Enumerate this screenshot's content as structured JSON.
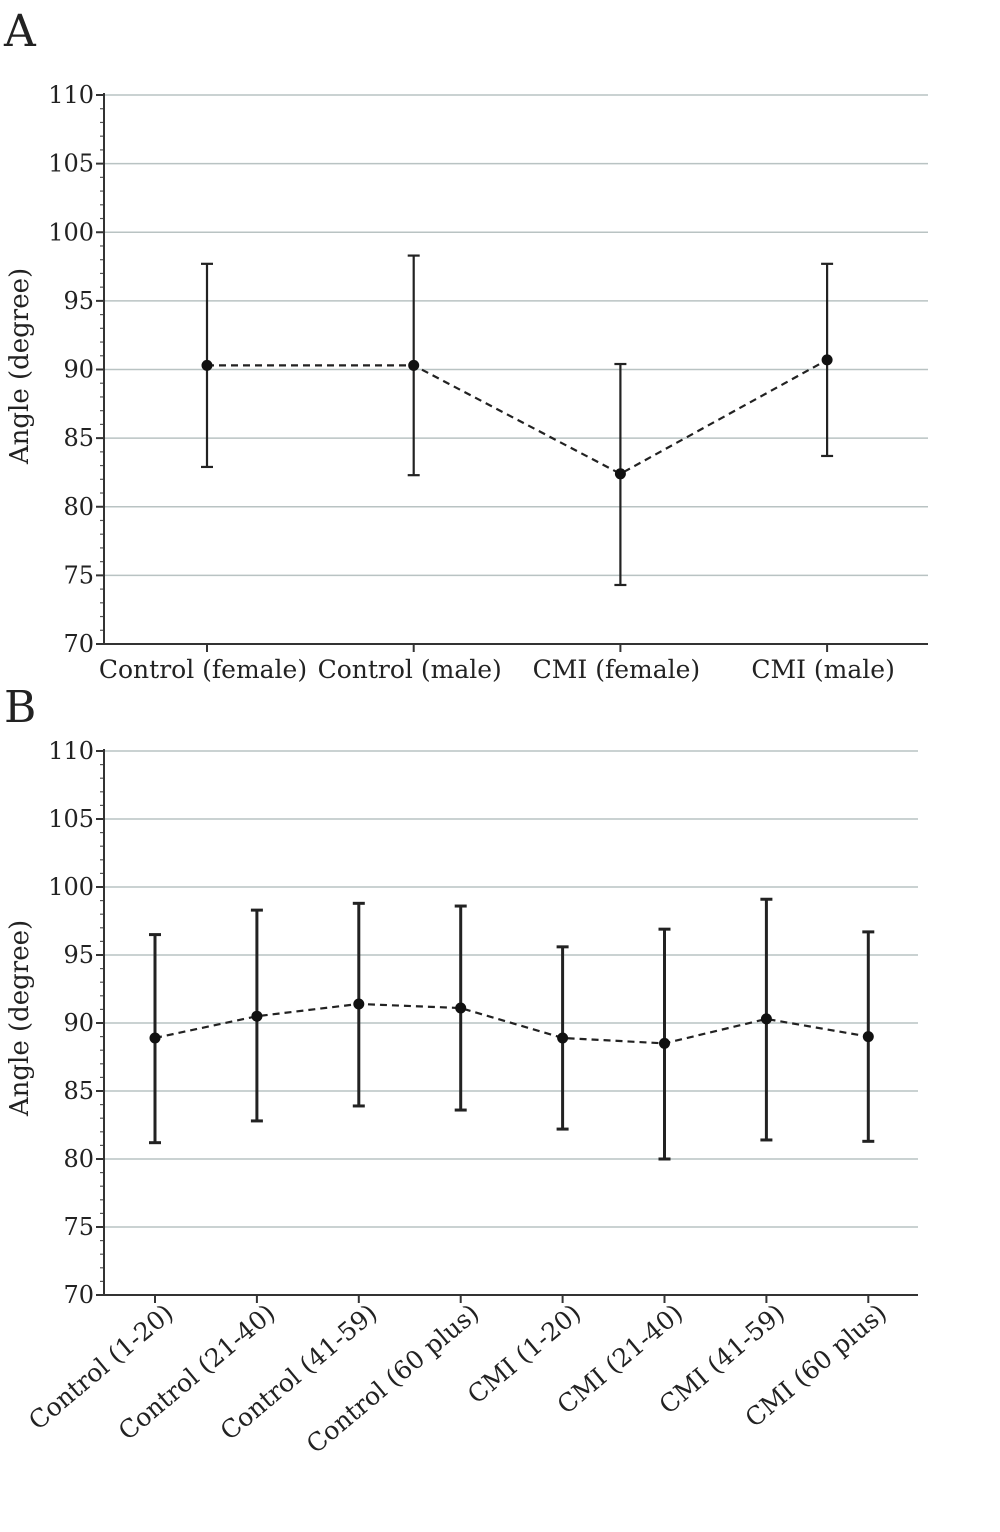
{
  "chart_data": [
    {
      "panel_label": "A",
      "type": "line",
      "ylabel": "Angle (degree)",
      "xlabel": "",
      "ylim": [
        70,
        110
      ],
      "yticks": [
        "70",
        "75",
        "80",
        "85",
        "90",
        "95",
        "100",
        "105",
        "110"
      ],
      "grid": true,
      "line_style": "dashed",
      "categories": [
        "Control (female)",
        "Control (male)",
        "CMI (female)",
        "CMI (male)"
      ],
      "values": [
        90.3,
        90.3,
        82.4,
        90.7
      ],
      "error_low": [
        82.9,
        82.3,
        74.3,
        83.7
      ],
      "error_high": [
        97.7,
        98.3,
        90.4,
        97.7
      ]
    },
    {
      "panel_label": "B",
      "type": "line",
      "ylabel": "Angle (degree)",
      "xlabel": "",
      "ylim": [
        70,
        110
      ],
      "yticks": [
        "70",
        "75",
        "80",
        "85",
        "90",
        "95",
        "100",
        "105",
        "110"
      ],
      "grid": true,
      "line_style": "dashed",
      "categories": [
        "Control (1-20)",
        "Control (21-40)",
        "Control (41-59)",
        "Control (60 plus)",
        "CMI (1-20)",
        "CMI (21-40)",
        "CMI (41-59)",
        "CMI (60 plus)"
      ],
      "values": [
        88.9,
        90.5,
        91.4,
        91.1,
        88.9,
        88.5,
        90.3,
        89.0
      ],
      "error_low": [
        81.2,
        82.8,
        83.9,
        83.6,
        82.2,
        80.0,
        81.4,
        81.3
      ],
      "error_high": [
        96.5,
        98.3,
        98.8,
        98.6,
        95.6,
        96.9,
        99.1,
        96.7
      ]
    }
  ]
}
